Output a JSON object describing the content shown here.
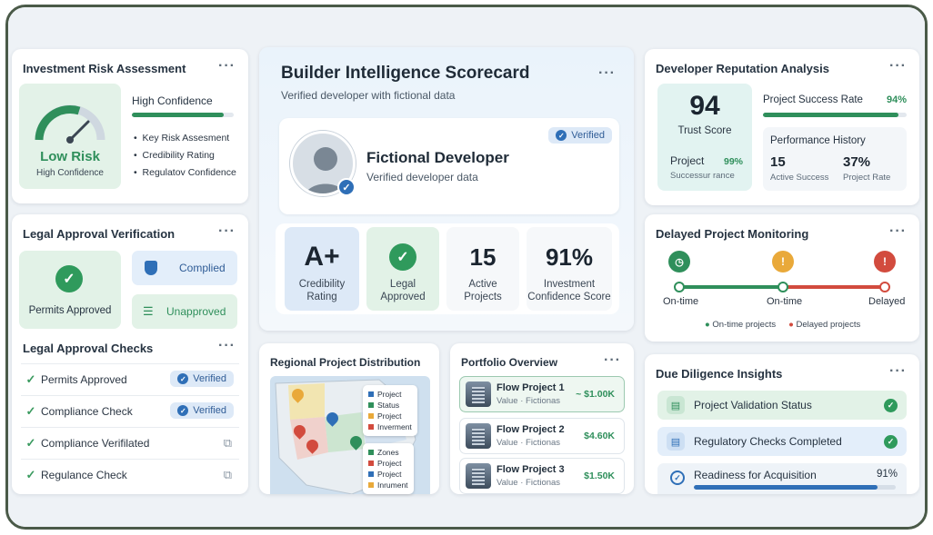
{
  "risk": {
    "title": "Investment Risk Assessment",
    "level": "Low Risk",
    "level_sub": "High Confidence",
    "confidence_label": "High Confidence",
    "confidence_progress": 0.9,
    "items": [
      "Key Risk Assesment",
      "Credibility Rating",
      "Regulatov Confidence"
    ]
  },
  "scorecard": {
    "title": "Builder Intelligence Scorecard",
    "subtitle": "Verified developer with fictional data",
    "verified_label": "Verified",
    "developer_name": "Fictional Developer",
    "developer_sub": "Verified developer data",
    "metrics": [
      {
        "big": "A+",
        "sub1": "Credibility",
        "sub2": "Rating"
      },
      {
        "big": "",
        "sub1": "Legal",
        "sub2": "Approved"
      },
      {
        "big": "15",
        "sub1": "Active",
        "sub2": "Projects"
      },
      {
        "big": "91%",
        "sub1": "Investment",
        "sub2": "Confidence Score"
      }
    ]
  },
  "reputation": {
    "title": "Developer Reputation Analysis",
    "trust_score": "94",
    "trust_label": "Trust Score",
    "project_label": "Project",
    "project_pct": "99%",
    "project_sub": "Successur rance",
    "success_rate_label": "Project Success Rate",
    "success_rate_value": "94%",
    "success_rate_progress": 0.94,
    "history_title": "Performance History",
    "history": [
      {
        "value": "15",
        "label": "Active Success"
      },
      {
        "value": "37%",
        "label": "Project Rate"
      }
    ]
  },
  "legal": {
    "title": "Legal Approval Verification",
    "permits_label": "Permits Approved",
    "complied_label": "Complied",
    "unapproved_label": "Unapproved"
  },
  "checks": {
    "title": "Legal Approval Checks",
    "rows": [
      {
        "label": "Permits Approved",
        "badge": "Verified"
      },
      {
        "label": "Compliance Check",
        "badge": "Verified"
      },
      {
        "label": "Compliance Verifilated",
        "badge": ""
      },
      {
        "label": "Regulance Check",
        "badge": ""
      }
    ]
  },
  "regional": {
    "title": "Regional Project Distribution",
    "legend1": [
      "Project",
      "Status",
      "Project",
      "Inverment"
    ],
    "legend2": [
      "Zones",
      "Project",
      "Project",
      "Inrument"
    ]
  },
  "portfolio": {
    "title": "Portfolio Overview",
    "projects": [
      {
        "name": "Flow Project 1",
        "value": "Value · Fictionas",
        "amount": "~ $1.00K"
      },
      {
        "name": "Flow Project 2",
        "value": "Value · Fictionas",
        "amount": "$4.60K"
      },
      {
        "name": "Flow Project 3",
        "value": "Value · Fictionas",
        "amount": "$1.50K"
      }
    ]
  },
  "delayed": {
    "title": "Delayed Project Monitoring",
    "stages": [
      "On-time",
      "On-time",
      "Delayed"
    ],
    "legend": [
      "On-time projects",
      "Delayed projects"
    ]
  },
  "diligence": {
    "title": "Due Diligence Insights",
    "rows": [
      "Project Validation Status",
      "Regulatory Checks Completed"
    ],
    "readiness_label": "Readiness for Acquisition",
    "readiness_value": "91%",
    "readiness_progress": 0.91
  },
  "colors": {
    "green": "#2f8f5b",
    "blue": "#2f6fb7",
    "red": "#d24b3e",
    "amber": "#e9a93a"
  }
}
